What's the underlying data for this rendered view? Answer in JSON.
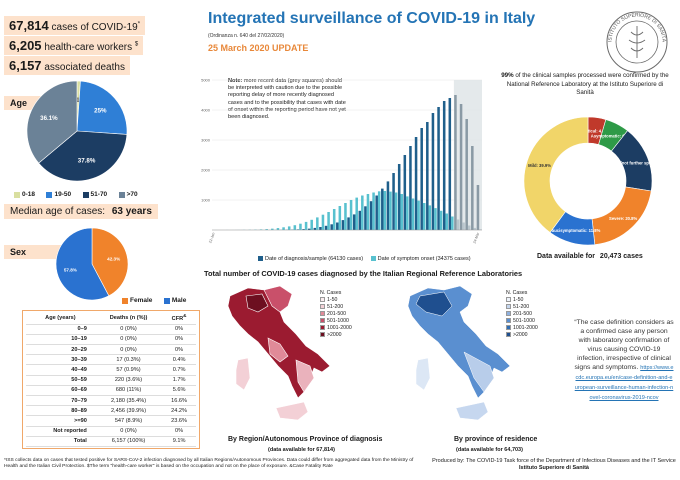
{
  "stats": {
    "cases_num": "67,814",
    "cases_label": "cases of COVID-19",
    "cases_sup": "*",
    "hcw_num": "6,205",
    "hcw_label": "health-care workers",
    "hcw_sup": "$",
    "deaths_num": "6,157",
    "deaths_label": "associated deaths"
  },
  "header": {
    "title": "Integrated surveillance of COVID-19 in Italy",
    "ordinance": "(Ordinanza n. 640 del 27/02/2020)",
    "update": "25 March 2020 UPDATE"
  },
  "logo": {
    "ring_text": "ISTITUTO SUPERIORE DI SANITÀ"
  },
  "age_section": {
    "label": "Age",
    "legend": [
      {
        "label": "0-18",
        "color": "#d9dfa0"
      },
      {
        "label": "19-50",
        "color": "#2f7fd6"
      },
      {
        "label": "51-70",
        "color": "#1c3d63"
      },
      {
        "label": ">70",
        "color": "#6b8297"
      }
    ]
  },
  "median": {
    "label": "Median age of cases:",
    "value": "63 years"
  },
  "sex_section": {
    "label": "Sex",
    "legend": [
      {
        "label": "Female",
        "color": "#f0832b"
      },
      {
        "label": "Male",
        "color": "#2a72d0"
      }
    ]
  },
  "cfr_table": {
    "headers": [
      "Age (years)",
      "Deaths (n (%))",
      "CFR"
    ],
    "cfr_sup": "&",
    "rows": [
      [
        "0–9",
        "0 (0%)",
        "0%"
      ],
      [
        "10–19",
        "0 (0%)",
        "0%"
      ],
      [
        "20–29",
        "0 (0%)",
        "0%"
      ],
      [
        "30–39",
        "17 (0.3%)",
        "0.4%"
      ],
      [
        "40–49",
        "57 (0.9%)",
        "0.7%"
      ],
      [
        "50–59",
        "220 (3.6%)",
        "1.7%"
      ],
      [
        "60–69",
        "680 (11%)",
        "5.6%"
      ],
      [
        "70–79",
        "2,180 (35.4%)",
        "16.6%"
      ],
      [
        "80–89",
        "2,456 (39.9%)",
        "24.2%"
      ],
      [
        ">=90",
        "547 (8.9%)",
        "23.6%"
      ],
      [
        "Not reported",
        "0 (0%)",
        "0%"
      ],
      [
        "Total",
        "6,157 (100%)",
        "9.1%"
      ]
    ]
  },
  "epi_note": {
    "bold": "Note:",
    "text": "more recent data (grey squares) should be interpreted with caution due to the possible reporting delay of more recently diagnosed cases  and to the possibility that  cases with date of onset within the reporting period have not yet been diagnosed."
  },
  "epi_legend": {
    "diag": "Date of diagnosis/sample (64130 cases)",
    "onset": "Date of symptom onset (34375 cases)"
  },
  "clinical": {
    "text": "of the clinical samples processed were confirmed by the National Reference Laboratory at the Istituto Superiore di Sanità",
    "pct": "99%",
    "available_label": "Data available for",
    "available_value": "20,473 cases"
  },
  "maps": {
    "title": "Total number of COVID-19 cases diagnosed by the Italian Regional Reference Laboratories",
    "legend_title": "N. Cases",
    "legend_items": [
      "1-50",
      "51-200",
      "201-500",
      "501-1000",
      "1001-2000",
      ">2000"
    ],
    "left_caption": "By Region/Autonomous Province of diagnosis",
    "left_avail": "(data available for 67,814)",
    "right_caption": "By province of residence",
    "right_avail": "(data available for 64,703)"
  },
  "definition": {
    "text": "“The case definition considers as a confirmed case any person with laboratory confirmation of virus causing COVID-19 infection, irrespective of clinical signs and symptoms.",
    "link": "https://www.ecdc.europa.eu/en/case-definition-and-european-surveillance-human-infection-novel-coronavirus-2019-ncov"
  },
  "footer": {
    "notes": "*ISS collects data on cases that tested positive for SARS-CoV-2  infection diagnosed by all Italian Regions/Autonomous Provinces. Data could differ from aggregated data from the Ministry of Health and the Italian Civil Protection. $The term \"health-care worker\" is based on the occupation and not on the place of exposure. &Case Fatality Rate",
    "credit": "Produced by:  The COVID-19 Task force of the Department of Infectious Diseases and the IT Service",
    "credit_bold": "Istituto Superiore di Sanità"
  },
  "colors": {
    "title_blue": "#2474b5",
    "orange": "#e8883a",
    "peach": "#fde2cc",
    "teal": "#45b0c8",
    "map_red": "#9b1b30",
    "map_blue": "#1f4f8f"
  },
  "chart_data": [
    {
      "type": "pie",
      "name": "age",
      "categories": [
        "0-18",
        "19-50",
        "51-70",
        ">70"
      ],
      "values": [
        1.1,
        25.0,
        37.8,
        36.1
      ],
      "labels": [
        "1.1%",
        "25%",
        "37.8%",
        "36.1%"
      ],
      "colors": [
        "#d9dfa0",
        "#2f7fd6",
        "#1c3d63",
        "#6b8297"
      ]
    },
    {
      "type": "pie",
      "name": "sex",
      "categories": [
        "Female",
        "Male"
      ],
      "values": [
        42.3,
        57.8
      ],
      "labels": [
        "42.3%",
        "57.8%"
      ],
      "colors": [
        "#f0832b",
        "#2a72d0"
      ]
    },
    {
      "type": "bar",
      "name": "epidemic_curve",
      "series": [
        {
          "name": "Date of diagnosis/sample (64130 cases)",
          "color": "#1f5f8b",
          "values": [
            0,
            0,
            0,
            0,
            1,
            1,
            0,
            1,
            2,
            1,
            2,
            3,
            5,
            8,
            12,
            20,
            30,
            45,
            70,
            100,
            140,
            190,
            250,
            330,
            420,
            520,
            640,
            790,
            960,
            1150,
            1380,
            1620,
            1900,
            2200,
            2500,
            2800,
            3100,
            3400,
            3600,
            3900,
            4100,
            4300,
            4400,
            4500,
            4200,
            3700,
            2800,
            1500
          ]
        },
        {
          "name": "Date of symptom onset (34375 cases)",
          "color": "#58c1cf",
          "values": [
            1,
            0,
            2,
            1,
            3,
            5,
            8,
            12,
            20,
            30,
            45,
            65,
            90,
            120,
            160,
            210,
            270,
            340,
            420,
            510,
            600,
            700,
            800,
            900,
            1000,
            1080,
            1150,
            1200,
            1250,
            1290,
            1300,
            1280,
            1250,
            1200,
            1120,
            1050,
            980,
            900,
            820,
            730,
            640,
            550,
            450,
            350,
            250,
            150,
            70,
            20
          ]
        }
      ],
      "x_ticks": [
        "22-Jan",
        "",
        "",
        "",
        "",
        "",
        "",
        "",
        "",
        "",
        "",
        "",
        "",
        "",
        "",
        "",
        "",
        "",
        "",
        "",
        "",
        "",
        "",
        "",
        "",
        "",
        "",
        "",
        "",
        "",
        "",
        "",
        "",
        "",
        "",
        "",
        "",
        "",
        "",
        "",
        "",
        "",
        "",
        "",
        "",
        "",
        "",
        "24-Mar"
      ],
      "y_ticks": [
        "",
        "1000",
        "2000",
        "3000",
        "4000",
        "5000"
      ],
      "ylim": [
        0,
        5000
      ],
      "shaded_last_n": 5
    },
    {
      "type": "pie",
      "name": "clinical_status",
      "categories": [
        "Critical",
        "Asymptomatic",
        "Symptomatic (not further specified)",
        "Severe",
        "Paucisymptomatic",
        "Mild"
      ],
      "values": [
        4.5,
        6.1,
        16.9,
        20.8,
        11.8,
        39.9
      ],
      "labels": [
        "Critical: 4.5%",
        "Asymptomatic: 6.1%",
        "Symptomatic (not further specified): 16.9%",
        "Severe: 20.8%",
        "Paucisymptomatic: 11.8%",
        "Mild: 39.9%"
      ],
      "colors": [
        "#c0392b",
        "#2e9a47",
        "#1c3d63",
        "#f0832b",
        "#2a72d0",
        "#f1d569"
      ]
    }
  ]
}
